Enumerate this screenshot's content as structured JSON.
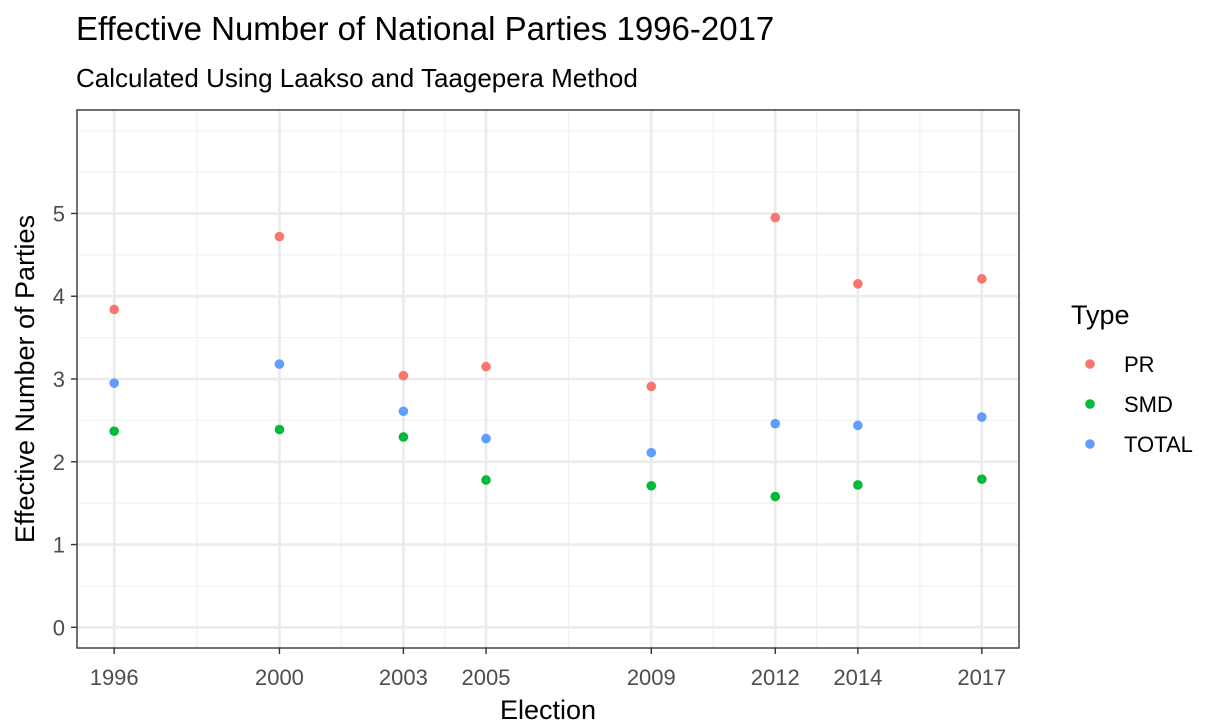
{
  "chart_data": {
    "type": "scatter",
    "title": "Effective Number of National Parties 1996-2017",
    "subtitle": "Calculated Using Laakso and Taagepera Method",
    "xlabel": "Election",
    "ylabel": "Effective Number of Parties",
    "x": [
      1996,
      2000,
      2003,
      2005,
      2009,
      2012,
      2014,
      2017
    ],
    "xlim": [
      1995.1,
      2017.9
    ],
    "ylim": [
      -0.25,
      6.25
    ],
    "yticks": [
      0,
      1,
      2,
      3,
      4,
      5
    ],
    "grid": true,
    "legend": {
      "title": "Type",
      "position": "right"
    },
    "series": [
      {
        "name": "PR",
        "color": "#F8766D",
        "values": [
          3.84,
          4.72,
          3.04,
          3.15,
          2.91,
          4.95,
          4.15,
          4.21
        ]
      },
      {
        "name": "SMD",
        "color": "#00BA38",
        "values": [
          2.37,
          2.39,
          2.3,
          1.78,
          1.71,
          1.58,
          1.72,
          1.79
        ]
      },
      {
        "name": "TOTAL",
        "color": "#619CFF",
        "values": [
          2.95,
          3.18,
          2.61,
          2.28,
          2.11,
          2.46,
          2.44,
          2.54
        ]
      }
    ]
  }
}
